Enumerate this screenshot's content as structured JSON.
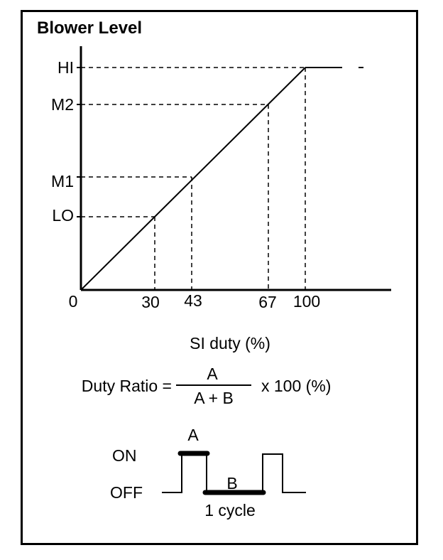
{
  "title": "Blower Level",
  "y_levels": [
    {
      "label": "HI",
      "duty": 100
    },
    {
      "label": "M2",
      "duty": 67
    },
    {
      "label": "M1",
      "duty": 43
    },
    {
      "label": "LO",
      "duty": 30
    }
  ],
  "origin_label": "0",
  "x_ticks": [
    "30",
    "43",
    "67",
    "100"
  ],
  "x_axis_label": "SI duty (%)",
  "formula": {
    "left": "Duty Ratio =",
    "numerator": "A",
    "denominator": "A + B",
    "right": "x 100 (%)"
  },
  "waveform": {
    "on_label": "ON",
    "off_label": "OFF",
    "a_label": "A",
    "b_label": "B",
    "cycle_label": "1 cycle"
  }
}
